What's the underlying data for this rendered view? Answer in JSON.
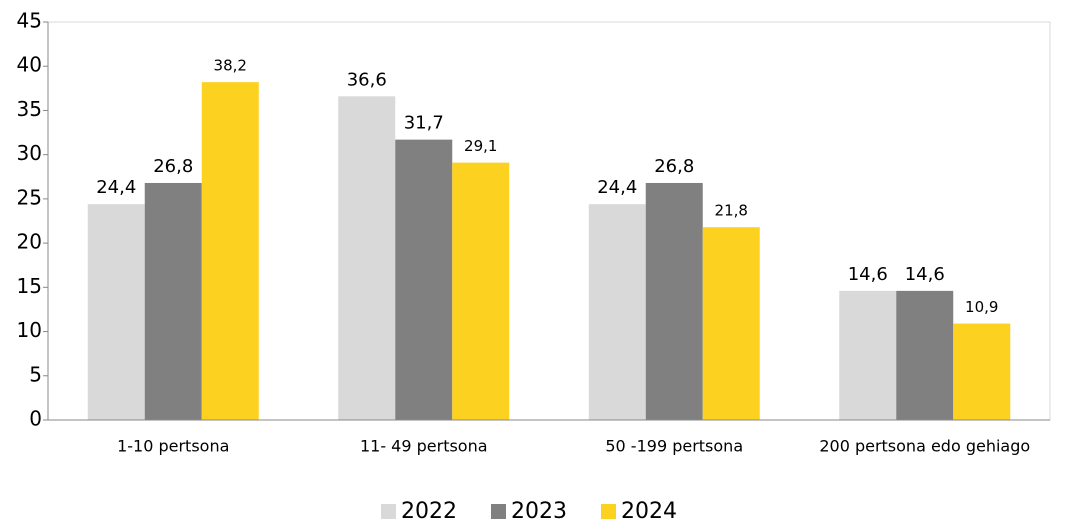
{
  "chart_data": {
    "type": "bar",
    "categories": [
      "1-10 pertsona",
      "11- 49 pertsona",
      "50 -199 pertsona",
      "200 pertsona edo gehiago"
    ],
    "series": [
      {
        "name": "2022",
        "color": "#d9d9d9",
        "values": [
          24.4,
          36.6,
          24.4,
          14.6
        ],
        "value_labels": [
          "24,4",
          "36,6",
          "24,4",
          "14,6"
        ]
      },
      {
        "name": "2023",
        "color": "#808080",
        "values": [
          26.8,
          31.7,
          26.8,
          14.6
        ],
        "value_labels": [
          "26,8",
          "31,7",
          "26,8",
          "14,6"
        ]
      },
      {
        "name": "2024",
        "color": "#fdd120",
        "values": [
          38.2,
          29.1,
          21.8,
          10.9
        ],
        "value_labels": [
          "38,2",
          "29,1",
          "21,8",
          "10,9"
        ]
      }
    ],
    "ylim": [
      0,
      45
    ],
    "yticks": [
      0,
      5,
      10,
      15,
      20,
      25,
      30,
      35,
      40,
      45
    ],
    "grid": false,
    "legend": "bottom"
  }
}
